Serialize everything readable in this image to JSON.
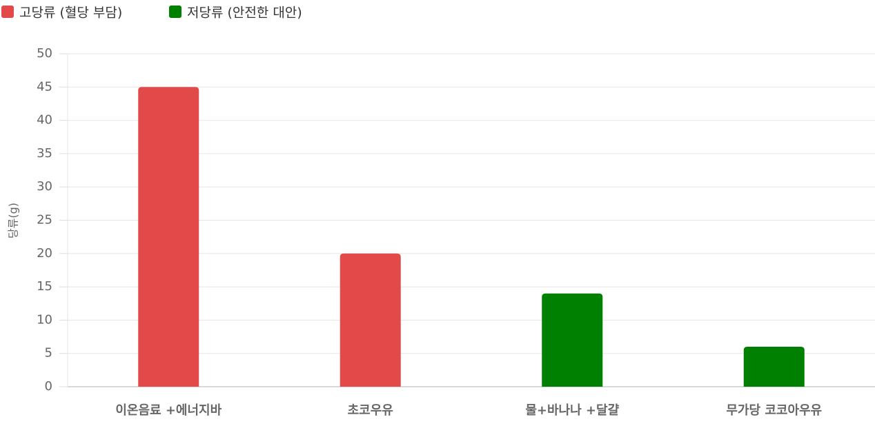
{
  "chart_data": {
    "type": "bar",
    "y_label": "당류(g)",
    "categories": [
      "이온음료 +에너지바",
      "초코우유",
      "물+바나나 +달걀",
      "무가당 코코아우유"
    ],
    "series": [
      {
        "name": "고당류 (혈당 부담)",
        "color": "#e24a4a",
        "values": [
          45,
          20,
          null,
          null
        ]
      },
      {
        "name": "저당류 (안전한 대안)",
        "color": "#008000",
        "values": [
          null,
          null,
          14,
          6
        ]
      }
    ],
    "ylim": [
      0,
      50
    ],
    "yticks": [
      0,
      5,
      10,
      15,
      20,
      25,
      30,
      35,
      40,
      45,
      50
    ],
    "grid": true
  }
}
